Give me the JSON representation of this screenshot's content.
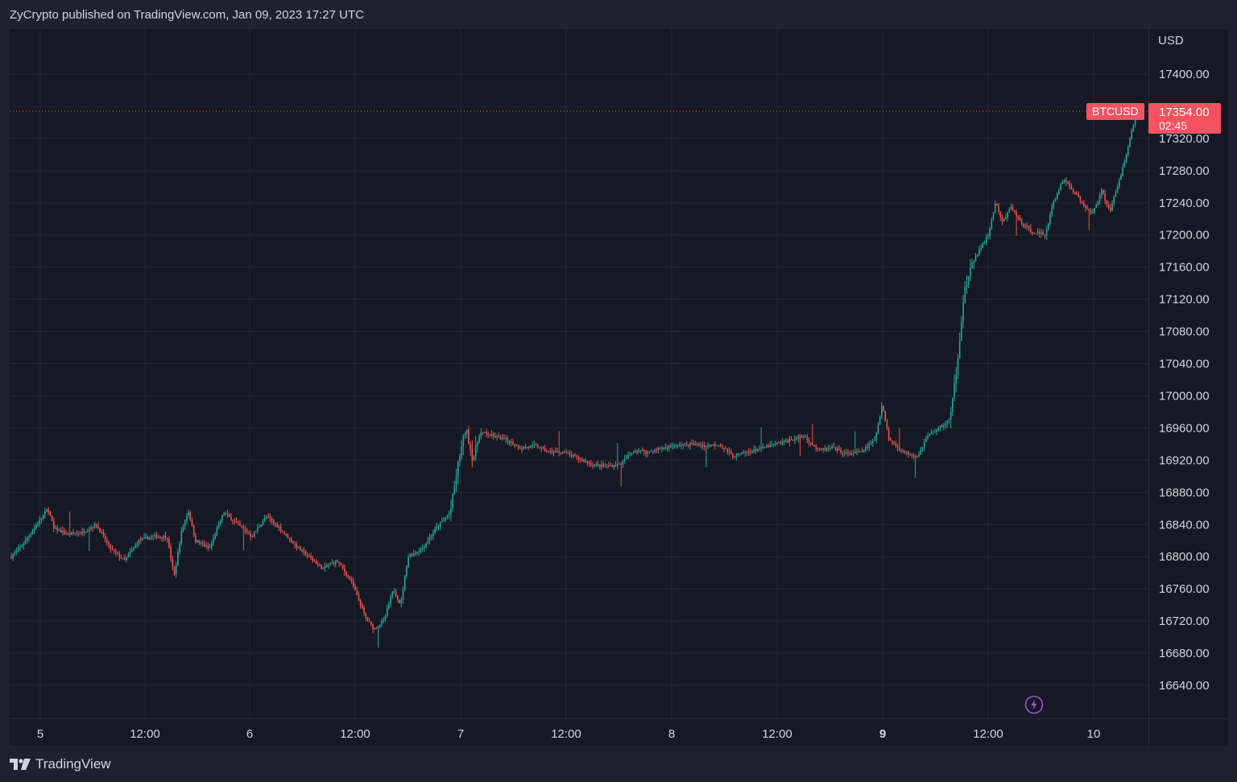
{
  "header": {
    "published": "ZyCrypto published on TradingView.com, Jan 09, 2023 17:27 UTC"
  },
  "price_axis": {
    "currency": "USD",
    "ticks": [
      "17400.00",
      "17320.00",
      "17280.00",
      "17240.00",
      "17200.00",
      "17160.00",
      "17120.00",
      "17080.00",
      "17040.00",
      "17000.00",
      "16960.00",
      "16920.00",
      "16880.00",
      "16840.00",
      "16800.00",
      "16760.00",
      "16720.00",
      "16680.00",
      "16640.00"
    ]
  },
  "time_axis": {
    "ticks": [
      "5",
      "12:00",
      "6",
      "12:00",
      "7",
      "12:00",
      "8",
      "12:00",
      "9",
      "12:00",
      "10"
    ]
  },
  "last_price": {
    "symbol": "BTCUSD",
    "price": "17354.00",
    "countdown": "02:45"
  },
  "colors": {
    "up": "#26a69a",
    "down": "#ef5350",
    "badge": "#f7525f",
    "background": "#151924",
    "grid": "#242835",
    "flash": "#a64fd6"
  },
  "footer": {
    "brand": "TradingView"
  },
  "icons": {
    "flash": "lightning-icon",
    "logo": "tradingview-logo-icon"
  },
  "chart_data": {
    "type": "candlestick",
    "symbol": "BTCUSD",
    "x_axis": [
      "5",
      "12:00",
      "6",
      "12:00",
      "7",
      "12:00",
      "8",
      "12:00",
      "9",
      "12:00",
      "10"
    ],
    "ylim": [
      16600,
      17430
    ],
    "last_price": 17354.0,
    "path_points": [
      {
        "x": 0,
        "y": 16800
      },
      {
        "x": 0.8,
        "y": 16815
      },
      {
        "x": 2,
        "y": 16845
      },
      {
        "x": 2.6,
        "y": 16860
      },
      {
        "x": 3,
        "y": 16835
      },
      {
        "x": 4,
        "y": 16828
      },
      {
        "x": 5,
        "y": 16830
      },
      {
        "x": 6,
        "y": 16840
      },
      {
        "x": 7,
        "y": 16810
      },
      {
        "x": 8,
        "y": 16795
      },
      {
        "x": 9,
        "y": 16820
      },
      {
        "x": 10,
        "y": 16825
      },
      {
        "x": 11,
        "y": 16825
      },
      {
        "x": 11.5,
        "y": 16775
      },
      {
        "x": 12,
        "y": 16830
      },
      {
        "x": 12.5,
        "y": 16858
      },
      {
        "x": 13,
        "y": 16820
      },
      {
        "x": 14,
        "y": 16810
      },
      {
        "x": 15,
        "y": 16855
      },
      {
        "x": 16,
        "y": 16840
      },
      {
        "x": 17,
        "y": 16825
      },
      {
        "x": 18,
        "y": 16850
      },
      {
        "x": 19,
        "y": 16835
      },
      {
        "x": 20,
        "y": 16815
      },
      {
        "x": 21,
        "y": 16800
      },
      {
        "x": 22,
        "y": 16785
      },
      {
        "x": 23,
        "y": 16795
      },
      {
        "x": 24,
        "y": 16770
      },
      {
        "x": 25,
        "y": 16725
      },
      {
        "x": 25.6,
        "y": 16710
      },
      {
        "x": 26.3,
        "y": 16720
      },
      {
        "x": 27,
        "y": 16760
      },
      {
        "x": 27.5,
        "y": 16740
      },
      {
        "x": 28,
        "y": 16800
      },
      {
        "x": 29,
        "y": 16810
      },
      {
        "x": 30,
        "y": 16835
      },
      {
        "x": 31,
        "y": 16855
      },
      {
        "x": 31.6,
        "y": 16920
      },
      {
        "x": 32.1,
        "y": 16960
      },
      {
        "x": 32.6,
        "y": 16920
      },
      {
        "x": 33.1,
        "y": 16955
      },
      {
        "x": 34,
        "y": 16950
      },
      {
        "x": 35,
        "y": 16945
      },
      {
        "x": 36,
        "y": 16935
      },
      {
        "x": 37,
        "y": 16938
      },
      {
        "x": 38,
        "y": 16930
      },
      {
        "x": 39,
        "y": 16930
      },
      {
        "x": 40,
        "y": 16922
      },
      {
        "x": 41,
        "y": 16915
      },
      {
        "x": 42,
        "y": 16912
      },
      {
        "x": 43,
        "y": 16915
      },
      {
        "x": 44,
        "y": 16932
      },
      {
        "x": 45,
        "y": 16930
      },
      {
        "x": 46,
        "y": 16935
      },
      {
        "x": 47,
        "y": 16938
      },
      {
        "x": 48,
        "y": 16940
      },
      {
        "x": 49,
        "y": 16938
      },
      {
        "x": 50,
        "y": 16940
      },
      {
        "x": 51,
        "y": 16925
      },
      {
        "x": 52,
        "y": 16930
      },
      {
        "x": 53,
        "y": 16935
      },
      {
        "x": 54,
        "y": 16940
      },
      {
        "x": 55,
        "y": 16945
      },
      {
        "x": 56,
        "y": 16950
      },
      {
        "x": 57,
        "y": 16932
      },
      {
        "x": 58,
        "y": 16935
      },
      {
        "x": 59,
        "y": 16928
      },
      {
        "x": 60,
        "y": 16930
      },
      {
        "x": 61,
        "y": 16945
      },
      {
        "x": 61.5,
        "y": 16990
      },
      {
        "x": 62,
        "y": 16945
      },
      {
        "x": 63,
        "y": 16930
      },
      {
        "x": 64,
        "y": 16925
      },
      {
        "x": 64.7,
        "y": 16950
      },
      {
        "x": 65.5,
        "y": 16960
      },
      {
        "x": 66.3,
        "y": 16970
      },
      {
        "x": 66.8,
        "y": 17040
      },
      {
        "x": 67.3,
        "y": 17130
      },
      {
        "x": 68,
        "y": 17170
      },
      {
        "x": 69,
        "y": 17200
      },
      {
        "x": 69.5,
        "y": 17240
      },
      {
        "x": 70,
        "y": 17215
      },
      {
        "x": 70.6,
        "y": 17235
      },
      {
        "x": 71.3,
        "y": 17215
      },
      {
        "x": 72,
        "y": 17205
      },
      {
        "x": 73,
        "y": 17200
      },
      {
        "x": 73.6,
        "y": 17240
      },
      {
        "x": 74.3,
        "y": 17270
      },
      {
        "x": 75,
        "y": 17255
      },
      {
        "x": 75.6,
        "y": 17240
      },
      {
        "x": 76.3,
        "y": 17225
      },
      {
        "x": 77,
        "y": 17255
      },
      {
        "x": 77.6,
        "y": 17230
      },
      {
        "x": 78.3,
        "y": 17270
      },
      {
        "x": 79,
        "y": 17320
      },
      {
        "x": 79.5,
        "y": 17354
      }
    ]
  }
}
